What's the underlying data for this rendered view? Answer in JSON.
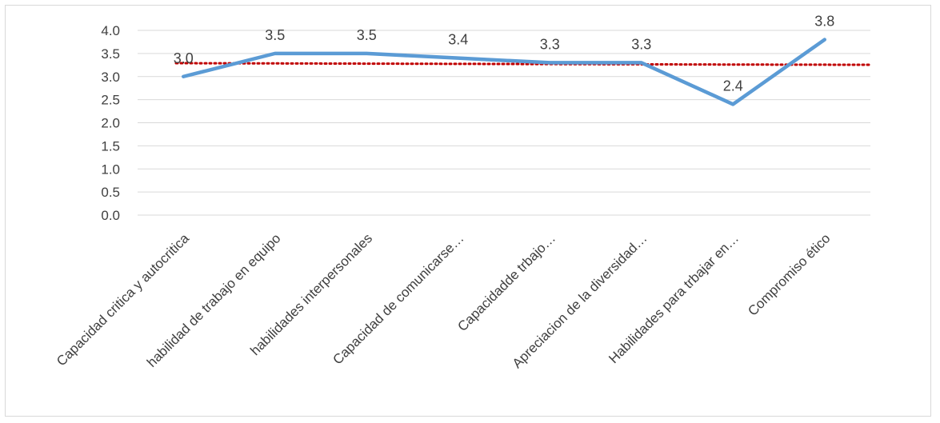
{
  "chart_data": {
    "type": "line",
    "categories": [
      "Capacidad critica y autocritica",
      "habilidad de trabajo en equipo",
      "habilidades interpersonales",
      "Capacidad de comunicarse…",
      "Capacidadde trbajo…",
      "Apreciacion de la diversidad…",
      "Habilidades para trbajar en…",
      "Compromiso ético"
    ],
    "series": [
      {
        "values": [
          3.0,
          3.5,
          3.5,
          3.4,
          3.3,
          3.3,
          2.4,
          3.8
        ],
        "labels": [
          "3.0",
          "3.5",
          "3.5",
          "3.4",
          "3.3",
          "3.3",
          "2.4",
          "3.8"
        ],
        "color": "#5b9bd5"
      },
      {
        "style": "dotted-trendline",
        "values": [
          3.29,
          3.285,
          3.28,
          3.275,
          3.27,
          3.265,
          3.26,
          3.255
        ],
        "color": "#c00000"
      }
    ],
    "yticks": [
      "0.0",
      "0.5",
      "1.0",
      "1.5",
      "2.0",
      "2.5",
      "3.0",
      "3.5",
      "4.0"
    ],
    "ylim": [
      0,
      4
    ],
    "grid": true,
    "gridColor": "#d9d9d9",
    "title": "",
    "xlabel": "",
    "ylabel": ""
  }
}
